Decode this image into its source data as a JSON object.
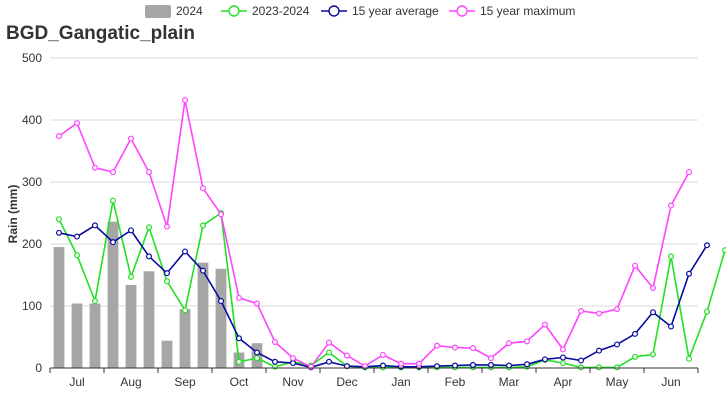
{
  "chart_data": {
    "type": "bar+line",
    "title": "BGD_Gangatic_plain",
    "ylabel": "Rain (mm)",
    "xlabel": "",
    "ylim": [
      0,
      500
    ],
    "yticks": [
      0,
      100,
      200,
      300,
      400,
      500
    ],
    "month_labels": [
      "Jul",
      "Aug",
      "Sep",
      "Oct",
      "Nov",
      "Dec",
      "Jan",
      "Feb",
      "Mar",
      "Apr",
      "May",
      "Jun"
    ],
    "legend_position": "top",
    "grid": "horizontal",
    "series": [
      {
        "name": "2024",
        "kind": "bar",
        "color": "#a6a6a6",
        "values": [
          195,
          104,
          104,
          236,
          134,
          156,
          44,
          95,
          170,
          160,
          25,
          40
        ]
      },
      {
        "name": "2023-2024",
        "kind": "line",
        "color": "#22e022",
        "values": [
          240,
          182,
          108,
          270,
          147,
          227,
          140,
          93,
          230,
          250,
          10,
          16,
          2,
          10,
          4,
          25,
          3,
          1,
          1,
          1,
          1,
          1,
          1,
          1,
          1,
          1,
          2,
          13,
          8,
          1,
          1,
          1,
          18,
          22,
          180,
          15,
          91,
          190
        ]
      },
      {
        "name": "15 year average",
        "kind": "line",
        "color": "#0a0aa0",
        "values": [
          218,
          212,
          230,
          203,
          222,
          180,
          153,
          188,
          157,
          108,
          48,
          25,
          10,
          8,
          1,
          10,
          3,
          2,
          4,
          2,
          2,
          3,
          4,
          5,
          5,
          4,
          6,
          14,
          17,
          12,
          28,
          38,
          55,
          90,
          67,
          152,
          198
        ]
      },
      {
        "name": "15 year maximum",
        "kind": "line",
        "color": "#ff44ff",
        "values": [
          374,
          395,
          323,
          316,
          370,
          316,
          228,
          432,
          290,
          248,
          113,
          104,
          42,
          16,
          2,
          41,
          20,
          3,
          21,
          7,
          7,
          36,
          33,
          32,
          16,
          40,
          43,
          70,
          30,
          92,
          88,
          95,
          165,
          129,
          262,
          316
        ]
      }
    ]
  }
}
